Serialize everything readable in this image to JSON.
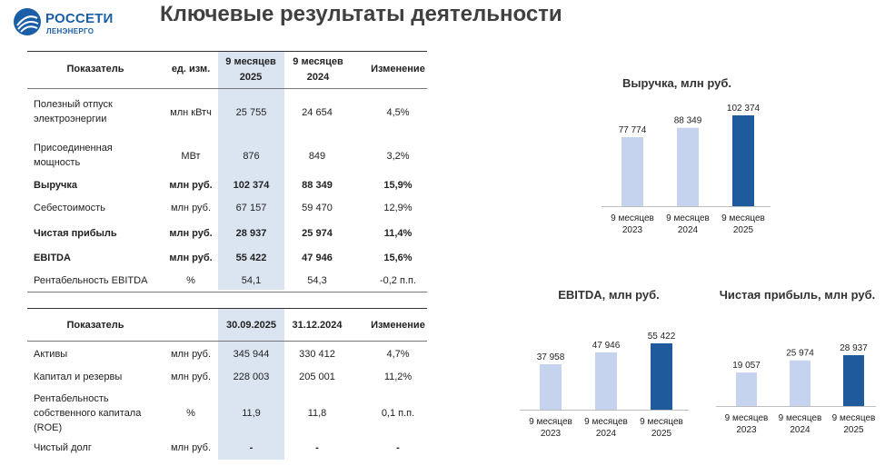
{
  "logo": {
    "name": "РОССЕТИ",
    "sub": "ЛЕНЭНЕРГО"
  },
  "title": "Ключевые результаты деятельности",
  "colors": {
    "light_bar": "#c5d3ef",
    "dark_bar": "#1f5a9c",
    "highlight": "#dbe5f1"
  },
  "table1": {
    "headers": [
      "Показатель",
      "ед. изм.",
      "9 месяцев 2025",
      "9 месяцев 2024",
      "Изменение"
    ],
    "rows": [
      {
        "name": "Полезный отпуск электроэнергии",
        "unit": "млн кВтч",
        "v2025": "25 755",
        "v2024": "24 654",
        "change": "4,5%",
        "bold": false
      },
      {
        "name": "Присоединенная мощность",
        "unit": "МВт",
        "v2025": "876",
        "v2024": "849",
        "change": "3,2%",
        "bold": false
      },
      {
        "name": "Выручка",
        "unit": "млн руб.",
        "v2025": "102 374",
        "v2024": "88 349",
        "change": "15,9%",
        "bold": true
      },
      {
        "name": "Себестоимость",
        "unit": "млн руб.",
        "v2025": "67 157",
        "v2024": "59 470",
        "change": "12,9%",
        "bold": false
      },
      {
        "name": "Чистая прибыль",
        "unit": "млн руб.",
        "v2025": "28 937",
        "v2024": "25 974",
        "change": "11,4%",
        "bold": true
      },
      {
        "name": "EBITDA",
        "unit": "млн руб.",
        "v2025": "55 422",
        "v2024": "47 946",
        "change": "15,6%",
        "bold": true
      },
      {
        "name": "Рентабельность EBITDA",
        "unit": "%",
        "v2025": "54,1",
        "v2024": "54,3",
        "change": "-0,2 п.п.",
        "bold": false
      }
    ]
  },
  "table2": {
    "headers": [
      "Показатель",
      "",
      "30.09.2025",
      "31.12.2024",
      "Изменение"
    ],
    "rows": [
      {
        "name": "Активы",
        "unit": "млн руб.",
        "v2025": "345 944",
        "v2024": "330 412",
        "change": "4,7%"
      },
      {
        "name": "Капитал и резервы",
        "unit": "млн руб.",
        "v2025": "228 003",
        "v2024": "205 001",
        "change": "11,2%"
      },
      {
        "name": "Рентабельность собственного капитала (ROE)",
        "unit": "%",
        "v2025": "11,9",
        "v2024": "11,8",
        "change": "0,1 п.п."
      },
      {
        "name": "Чистый долг",
        "unit": "млн руб.",
        "v2025": "-",
        "v2024": "-",
        "change": "-"
      }
    ]
  },
  "chart_data": [
    {
      "type": "bar",
      "title": "Выручка, млн руб.",
      "categories": [
        "9 месяцев 2023",
        "9 месяцев 2024",
        "9 месяцев 2025"
      ],
      "values": [
        77774,
        88349,
        102374
      ],
      "labels": [
        "77 774",
        "88 349",
        "102 374"
      ]
    },
    {
      "type": "bar",
      "title": "EBITDA, млн руб.",
      "categories": [
        "9 месяцев 2023",
        "9 месяцев 2024",
        "9 месяцев 2025"
      ],
      "values": [
        37958,
        47946,
        55422
      ],
      "labels": [
        "37 958",
        "47 946",
        "55 422"
      ]
    },
    {
      "type": "bar",
      "title": "Чистая прибыль, млн руб.",
      "categories": [
        "9 месяцев 2023",
        "9 месяцев 2024",
        "9 месяцев 2025"
      ],
      "values": [
        19057,
        25974,
        28937
      ],
      "labels": [
        "19 057",
        "25 974",
        "28 937"
      ]
    }
  ]
}
